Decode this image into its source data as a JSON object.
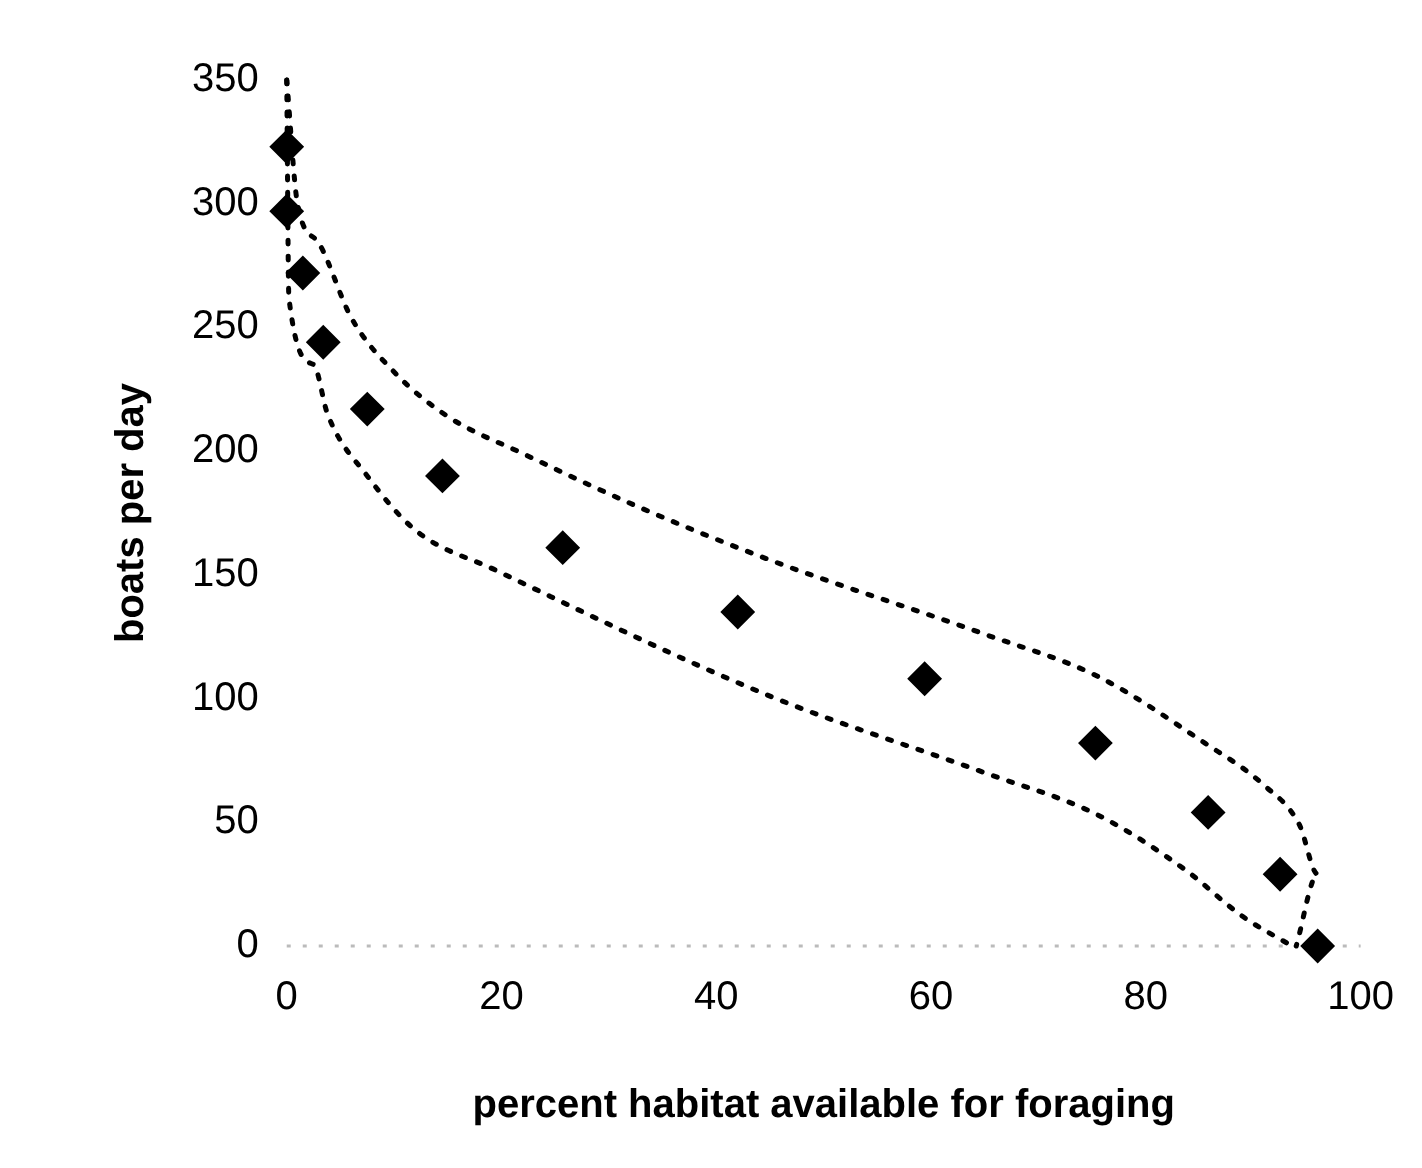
{
  "chart_data": {
    "type": "scatter",
    "xlabel": "percent habitat available for foraging",
    "ylabel": "boats per day",
    "xlim": [
      0,
      100
    ],
    "xticks": [
      0,
      20,
      40,
      60,
      80,
      100
    ],
    "ylim": [
      0,
      350
    ],
    "yticks": [
      0,
      50,
      100,
      150,
      200,
      250,
      300,
      350
    ],
    "grid": false,
    "legend": false,
    "ref_lines": [
      {
        "axis": "y",
        "value": 0,
        "color": "#bbbbbb",
        "line_style": "dotted"
      }
    ],
    "series": [
      {
        "color": "#000000",
        "marker": "diamond",
        "x": [
          0,
          0,
          1.5,
          3.4,
          7.5,
          14.5,
          25.7,
          42,
          59.4,
          75.3,
          85.8,
          92.5,
          96
        ],
        "values": [
          323,
          297,
          272,
          244,
          217,
          190,
          161,
          135,
          108,
          82,
          54,
          29,
          0
        ]
      },
      {
        "type": "line",
        "color": "#000000",
        "line_style": "dotted",
        "marker": "none",
        "x": [
          0,
          1,
          3,
          6,
          10,
          15,
          22,
          33,
          45,
          65,
          75.5,
          85.5,
          91,
          94.3,
          96,
          94
        ],
        "values": [
          350,
          300,
          284,
          254,
          232,
          214,
          199,
          177,
          156,
          126,
          109,
          82,
          65,
          49,
          29,
          0
        ]
      },
      {
        "type": "line",
        "color": "#000000",
        "line_style": "dotted",
        "marker": "none",
        "x": [
          0,
          0.2,
          2.5,
          3.8,
          7.5,
          12,
          19.4,
          45,
          65,
          75.5,
          83.6,
          89,
          93.6
        ],
        "values": [
          350,
          262,
          235,
          215,
          190,
          168,
          152,
          101,
          70,
          53,
          31,
          12,
          0
        ]
      }
    ]
  }
}
